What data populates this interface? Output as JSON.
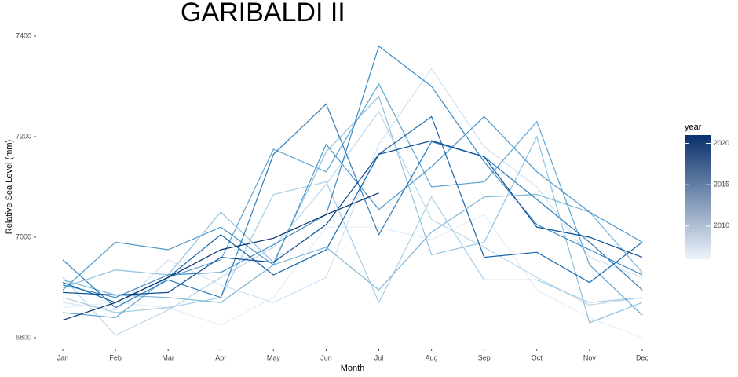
{
  "chart_data": {
    "type": "line",
    "title": "GARIBALDI II",
    "x_label": "Month",
    "y_label": "Relative Sea Level (mm)",
    "categories": [
      "Jan",
      "Feb",
      "Mar",
      "Apr",
      "May",
      "Jun",
      "Jul",
      "Aug",
      "Sep",
      "Oct",
      "Nov",
      "Dec"
    ],
    "ylim": [
      6780,
      7430
    ],
    "yticks": [
      6800,
      7000,
      7200,
      7400
    ],
    "grid": false,
    "legend": {
      "title": "year",
      "position": "right",
      "lim": [
        2006,
        2021
      ],
      "ticks": [
        2010,
        2015,
        2020
      ],
      "colors": [
        "#eef4fb",
        "#08306b"
      ]
    },
    "series": [
      {
        "color": "#e3eef9",
        "values": [
          6860,
          6870,
          6860,
          6825,
          6880,
          7020,
          7020,
          6995,
          7045,
          6895,
          6840,
          6800
        ]
      },
      {
        "color": "#d0e1f2",
        "values": [
          6870,
          6855,
          6955,
          6905,
          6870,
          6920,
          7185,
          7335,
          7180,
          7100,
          6960,
          6920
        ]
      },
      {
        "color": "#bcd7eb",
        "values": [
          6920,
          6805,
          6855,
          6920,
          6980,
          7105,
          7250,
          7035,
          6980,
          6920,
          6865,
          6880
        ]
      },
      {
        "color": "#a6cde4",
        "values": [
          6880,
          6850,
          6860,
          6880,
          7085,
          7110,
          6870,
          7080,
          6915,
          6915,
          6870,
          6880
        ]
      },
      {
        "color": "#8fc1de",
        "values": [
          6900,
          6935,
          6925,
          7050,
          6950,
          7170,
          7280,
          6965,
          6990,
          7200,
          6830,
          6870
        ]
      },
      {
        "color": "#7ab6d9",
        "values": [
          6915,
          6885,
          6880,
          6870,
          6945,
          6980,
          6895,
          7010,
          7080,
          7085,
          7050,
          6930
        ]
      },
      {
        "color": "#5ba3d0",
        "values": [
          6850,
          6840,
          6920,
          6955,
          7175,
          7130,
          7305,
          7100,
          7110,
          7230,
          6945,
          6845
        ]
      },
      {
        "color": "#4a98c9",
        "values": [
          6895,
          6990,
          6975,
          7020,
          6945,
          7185,
          7055,
          7140,
          7240,
          7130,
          7050,
          6990
        ]
      },
      {
        "color": "#3a8ac2",
        "values": [
          6905,
          6880,
          6925,
          6930,
          6985,
          7045,
          7380,
          7300,
          7150,
          7025,
          6975,
          6925
        ]
      },
      {
        "color": "#2b7bba",
        "values": [
          6955,
          6860,
          6915,
          6880,
          7165,
          7265,
          7005,
          7190,
          7160,
          7075,
          6990,
          6895
        ]
      },
      {
        "color": "#1764ab",
        "values": [
          6910,
          6870,
          6920,
          7005,
          6925,
          6975,
          7165,
          7240,
          6960,
          6970,
          6910,
          6990
        ]
      },
      {
        "color": "#0b4d94",
        "values": [
          6890,
          6885,
          6890,
          6960,
          6950,
          7025,
          7165,
          7192,
          7160,
          7020,
          7000,
          6960
        ]
      },
      {
        "color": "#08306b",
        "values": [
          6835,
          6870,
          6920,
          6975,
          6998,
          7045,
          7088,
          null,
          null,
          null,
          null,
          null
        ]
      }
    ]
  }
}
